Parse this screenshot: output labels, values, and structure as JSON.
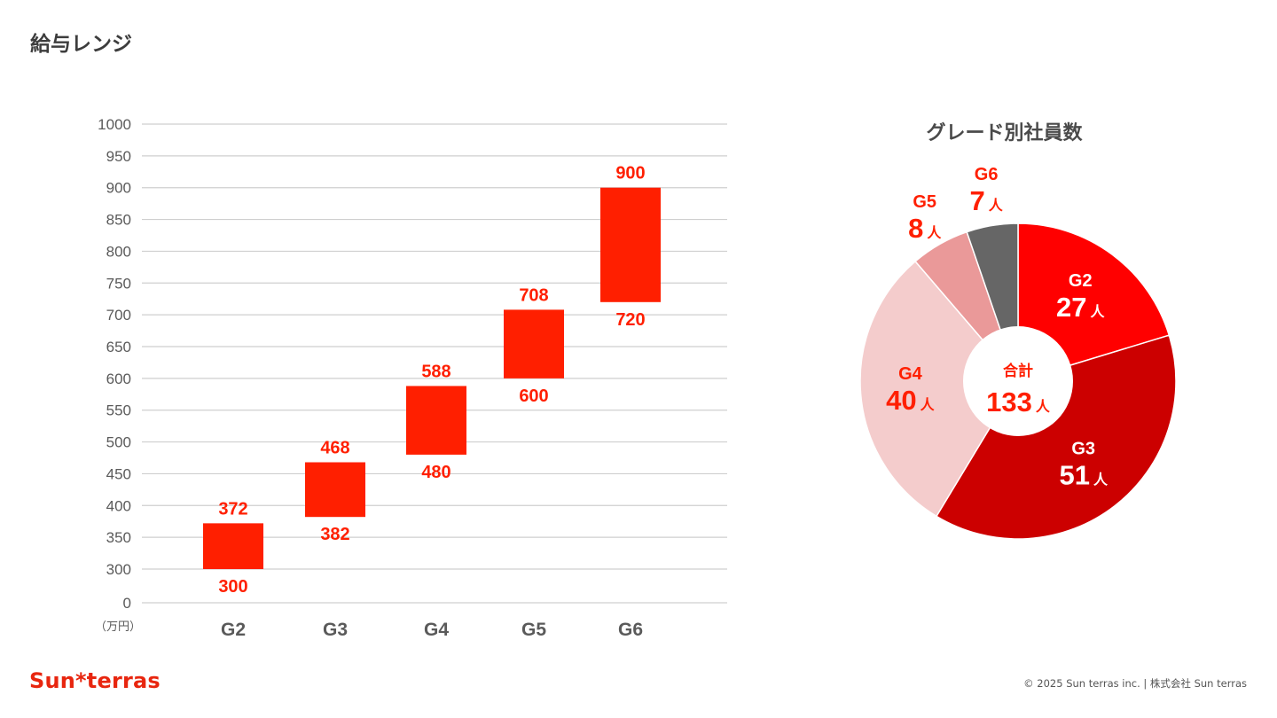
{
  "page": {
    "title": "給与レンジ",
    "brand": "Sun*terras",
    "copyright": "© 2025 Sun terras inc. | 株式会社 Sun terras"
  },
  "colors": {
    "accent": "#ff1f00",
    "grid": "#cfcfcf",
    "axis_text": "#5a5a5a",
    "title_text": "#3d3d3d",
    "pie_g2": "#ff0000",
    "pie_g3": "#cc0000",
    "pie_g4": "#f4cccc",
    "pie_g5": "#ea9999",
    "pie_g6": "#666666"
  },
  "chart_data": [
    {
      "type": "bar",
      "subtype": "floating-range",
      "title": "",
      "unit_label": "（万円）",
      "categories": [
        "G2",
        "G3",
        "G4",
        "G5",
        "G6"
      ],
      "series": [
        {
          "low": [
            300,
            382,
            480,
            600,
            720
          ],
          "high": [
            372,
            468,
            588,
            708,
            900
          ]
        }
      ],
      "y_ticks": [
        0,
        300,
        350,
        400,
        450,
        500,
        550,
        600,
        650,
        700,
        750,
        800,
        850,
        900,
        950,
        1000
      ],
      "ylim": [
        0,
        1000
      ],
      "axis_break": "0 to 300 compressed",
      "grid": true
    },
    {
      "type": "pie",
      "subtype": "donut",
      "title": "グレード別社員数",
      "categories": [
        "G2",
        "G3",
        "G4",
        "G5",
        "G6"
      ],
      "values": [
        27,
        51,
        40,
        8,
        7
      ],
      "unit": "人",
      "center_label": "合計",
      "total": 133
    }
  ]
}
